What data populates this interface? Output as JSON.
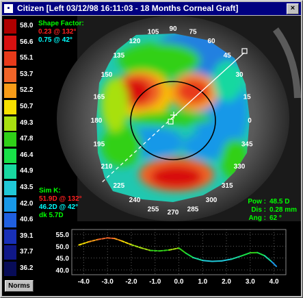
{
  "window": {
    "title": "Citizen [Left 03/12/98 16:11:03 - 18 Months Corneal Graft]",
    "icon": "app-icon",
    "close_label": "×"
  },
  "legend": {
    "items": [
      {
        "value": "58.0",
        "color": "#b00000"
      },
      {
        "value": "56.6",
        "color": "#d81010"
      },
      {
        "value": "55.1",
        "color": "#e83a1a"
      },
      {
        "value": "53.7",
        "color": "#f06428"
      },
      {
        "value": "52.2",
        "color": "#f89c18"
      },
      {
        "value": "50.7",
        "color": "#f8e000"
      },
      {
        "value": "49.3",
        "color": "#a8e010"
      },
      {
        "value": "47.8",
        "color": "#30d018"
      },
      {
        "value": "46.4",
        "color": "#18e048"
      },
      {
        "value": "44.9",
        "color": "#18d8a0"
      },
      {
        "value": "43.5",
        "color": "#20c8d8"
      },
      {
        "value": "42.0",
        "color": "#1898e8"
      },
      {
        "value": "40.6",
        "color": "#2060e0"
      },
      {
        "value": "39.1",
        "color": "#1830b8"
      },
      {
        "value": "37.7",
        "color": "#101888"
      },
      {
        "value": "36.2",
        "color": "#080c58"
      }
    ]
  },
  "shape_factor": {
    "label": "Shape Factor:",
    "value1": "0.23 @ 132°",
    "value2": "0.75 @ 42°"
  },
  "sim_k": {
    "label": "Sim K:",
    "k1": "51.9D @ 132°",
    "k2": "46.2D @ 42°",
    "dk": "dk 5.7D"
  },
  "axis_labels": [
    {
      "text": "90"
    },
    {
      "text": "75"
    },
    {
      "text": "60"
    },
    {
      "text": "45"
    },
    {
      "text": "30"
    },
    {
      "text": "15"
    },
    {
      "text": "0"
    },
    {
      "text": "345"
    },
    {
      "text": "330"
    },
    {
      "text": "315"
    },
    {
      "text": "300"
    },
    {
      "text": "285"
    },
    {
      "text": "270"
    },
    {
      "text": "255"
    },
    {
      "text": "240"
    },
    {
      "text": "225"
    },
    {
      "text": "210"
    },
    {
      "text": "195"
    },
    {
      "text": "180"
    },
    {
      "text": "165"
    },
    {
      "text": "150"
    },
    {
      "text": "135"
    },
    {
      "text": "120"
    },
    {
      "text": "105"
    }
  ],
  "stats": {
    "pow_label": "Pow :",
    "pow_value": "48.5 D",
    "dis_label": "Dis :",
    "dis_value": "0.28 mm",
    "ang_label": "Ang :",
    "ang_value": "62 °"
  },
  "profile": {
    "y_ticks": [
      "55.0",
      "50.0",
      "45.0",
      "40.0"
    ],
    "x_ticks": [
      "-4.0",
      "-3.0",
      "-2.0",
      "-1.0",
      "0.0",
      "1.0",
      "2.0",
      "3.0",
      "4.0"
    ]
  },
  "buttons": {
    "norms": "Norms"
  },
  "chart_data": {
    "type": "line",
    "title": "",
    "xlabel": "",
    "ylabel": "",
    "xlim": [
      -4.5,
      4.5
    ],
    "ylim": [
      38,
      57
    ],
    "series": [
      {
        "x": [
          -4.2,
          -3.8,
          -3.4,
          -3.0,
          -2.7,
          -2.4,
          -2.0,
          -1.6,
          -1.2,
          -0.8,
          -0.4,
          0.0,
          0.3,
          0.6,
          1.0,
          1.4,
          1.8,
          2.2,
          2.6,
          3.0,
          3.3,
          3.6,
          3.9,
          4.1
        ],
        "y": [
          50.5,
          51.8,
          52.8,
          53.5,
          53.2,
          52.2,
          50.6,
          49.3,
          48.2,
          48.0,
          48.4,
          49.2,
          47.0,
          45.2,
          44.0,
          43.6,
          43.8,
          44.5,
          45.8,
          47.2,
          47.3,
          46.0,
          43.5,
          41.5
        ]
      }
    ]
  }
}
